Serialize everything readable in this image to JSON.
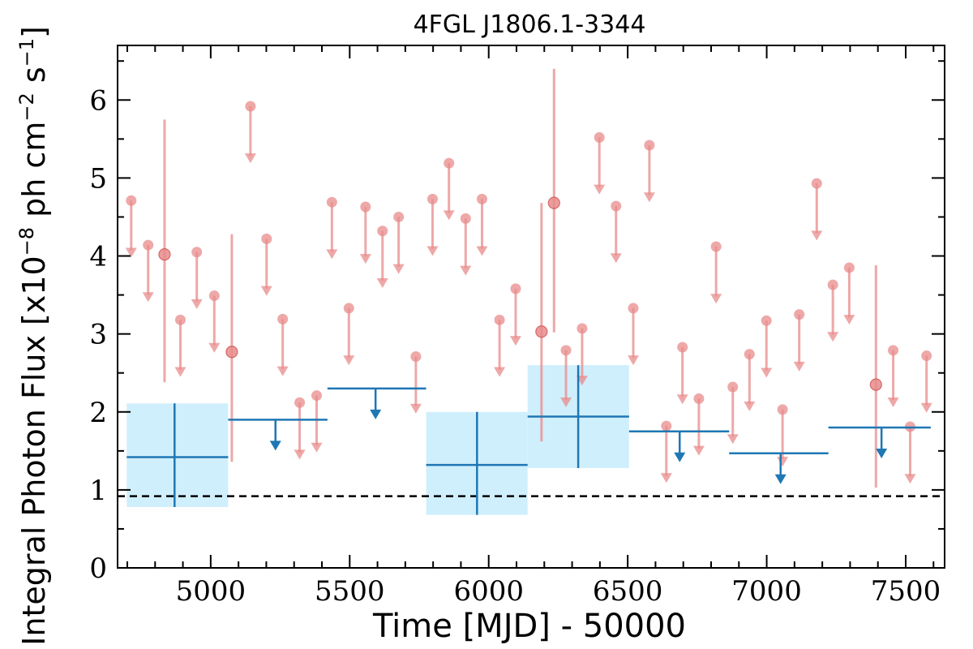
{
  "chart_data": {
    "type": "scatter",
    "title": "4FGL J1806.1-3344",
    "xlabel": "Time [MJD] - 50000",
    "ylabel": "Integral Photon Flux [x10",
    "ylabel_exp1": "−8",
    "ylabel_mid": " ph cm",
    "ylabel_exp2": "−2",
    "ylabel_mid2": " s",
    "ylabel_exp3": "−1",
    "ylabel_end": "]",
    "xlim": [
      4665,
      7640
    ],
    "ylim": [
      0,
      6.7
    ],
    "x_ticks": [
      5000,
      5500,
      6000,
      6500,
      7000,
      7500
    ],
    "x_tick_labels": [
      "5000",
      "5500",
      "6000",
      "6500",
      "7000",
      "7500"
    ],
    "y_ticks": [
      0,
      1,
      2,
      3,
      4,
      5,
      6
    ],
    "y_tick_labels": [
      "0",
      "1",
      "2",
      "3",
      "4",
      "5",
      "6"
    ],
    "reference_line": {
      "y": 0.92,
      "style": "dashed",
      "color": "#000000"
    },
    "colors": {
      "fine_points": "#e88b8b",
      "coarse_bins": "#1f77b4",
      "coarse_band": "#cdeefc"
    },
    "coarse_series": {
      "detections": [
        {
          "x0": 4698,
          "x1": 5063,
          "xc": 4870,
          "y": 1.42,
          "ylo": 0.78,
          "yhi": 2.11
        },
        {
          "x0": 5775,
          "x1": 6140,
          "xc": 5958,
          "y": 1.32,
          "ylo": 0.68,
          "yhi": 2.0
        },
        {
          "x0": 6140,
          "x1": 6505,
          "xc": 6322,
          "y": 1.94,
          "ylo": 1.28,
          "yhi": 2.6
        }
      ],
      "upper_limits": [
        {
          "x0": 5063,
          "x1": 5420,
          "xc": 5233,
          "y": 1.9
        },
        {
          "x0": 5420,
          "x1": 5775,
          "xc": 5593,
          "y": 2.3
        },
        {
          "x0": 6505,
          "x1": 6865,
          "xc": 6687,
          "y": 1.75
        },
        {
          "x0": 6865,
          "x1": 7222,
          "xc": 7050,
          "y": 1.47
        },
        {
          "x0": 7222,
          "x1": 7590,
          "xc": 7413,
          "y": 1.8
        }
      ]
    },
    "fine_series": {
      "detections": [
        {
          "x": 4834,
          "y": 4.02,
          "ylo": 2.38,
          "yhi": 5.75
        },
        {
          "x": 5076,
          "y": 2.77,
          "ylo": 1.36,
          "yhi": 4.28
        },
        {
          "x": 6190,
          "y": 3.03,
          "ylo": 1.62,
          "yhi": 4.68
        },
        {
          "x": 6235,
          "y": 4.68,
          "ylo": 3.02,
          "yhi": 6.4
        },
        {
          "x": 7393,
          "y": 2.35,
          "ylo": 1.03,
          "yhi": 3.88
        }
      ],
      "upper_limits": [
        {
          "x": 4714,
          "y": 4.71
        },
        {
          "x": 4775,
          "y": 4.14
        },
        {
          "x": 4891,
          "y": 3.18
        },
        {
          "x": 4950,
          "y": 4.05
        },
        {
          "x": 5013,
          "y": 3.49
        },
        {
          "x": 5143,
          "y": 5.92
        },
        {
          "x": 5201,
          "y": 4.22
        },
        {
          "x": 5259,
          "y": 3.19
        },
        {
          "x": 5320,
          "y": 2.12
        },
        {
          "x": 5381,
          "y": 2.21
        },
        {
          "x": 5436,
          "y": 4.69
        },
        {
          "x": 5497,
          "y": 3.33
        },
        {
          "x": 5557,
          "y": 4.63
        },
        {
          "x": 5618,
          "y": 4.32
        },
        {
          "x": 5676,
          "y": 4.5
        },
        {
          "x": 5738,
          "y": 2.71
        },
        {
          "x": 5798,
          "y": 4.73
        },
        {
          "x": 5857,
          "y": 5.19
        },
        {
          "x": 5917,
          "y": 4.48
        },
        {
          "x": 5976,
          "y": 4.73
        },
        {
          "x": 6039,
          "y": 3.18
        },
        {
          "x": 6097,
          "y": 3.58
        },
        {
          "x": 6278,
          "y": 2.79
        },
        {
          "x": 6336,
          "y": 3.07
        },
        {
          "x": 6398,
          "y": 5.52
        },
        {
          "x": 6458,
          "y": 4.64
        },
        {
          "x": 6520,
          "y": 3.33
        },
        {
          "x": 6578,
          "y": 5.42
        },
        {
          "x": 6639,
          "y": 1.82
        },
        {
          "x": 6697,
          "y": 2.83
        },
        {
          "x": 6756,
          "y": 2.17
        },
        {
          "x": 6818,
          "y": 4.12
        },
        {
          "x": 6878,
          "y": 2.32
        },
        {
          "x": 6938,
          "y": 2.74
        },
        {
          "x": 6999,
          "y": 3.17
        },
        {
          "x": 7057,
          "y": 2.03
        },
        {
          "x": 7117,
          "y": 3.25
        },
        {
          "x": 7180,
          "y": 4.93
        },
        {
          "x": 7238,
          "y": 3.63
        },
        {
          "x": 7297,
          "y": 3.85
        },
        {
          "x": 7455,
          "y": 2.79
        },
        {
          "x": 7516,
          "y": 1.81
        },
        {
          "x": 7575,
          "y": 2.72
        }
      ]
    }
  }
}
